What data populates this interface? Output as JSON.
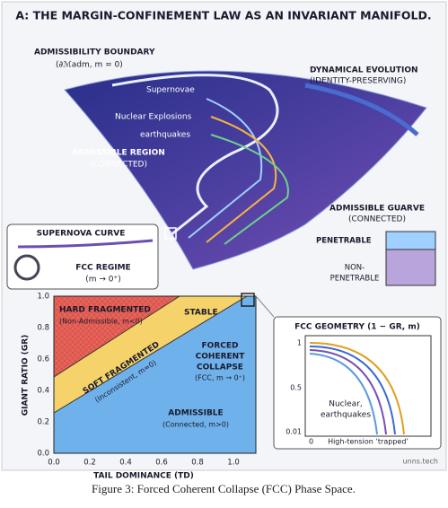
{
  "title": "A: THE MARGIN-CONFINEMENT LAW AS AN INVARIANT MANIFOLD.",
  "manifold": {
    "boundary": "ADMISSIBILITY BOUNDARY",
    "boundary_sub": "(∂ℳadm, m = 0)",
    "evolution": "DYNAMICAL EVOLUTION",
    "evolution_sub": "(IDENTITY-PRESERVING)",
    "events": [
      "Supernovae",
      "Nuclear Explosions",
      "earthquakes"
    ],
    "region": "ADMISSIBLE REGION",
    "region_sub": "(CONNECTED)",
    "guarve": "ADMISSIBLE GUARVE",
    "guarve_sub": "(CONNECTED)",
    "penetrable": "PENETRABLE",
    "non_penetrable": [
      "NON-",
      "PENETRABLE"
    ]
  },
  "zoom": {
    "title": "SUPERNOVA CURVE",
    "regime": "FCC REGIME",
    "regime_sub": "(m → 0⁺)"
  },
  "phase": {
    "ylabel": "GIANT RATIO (GR)",
    "xlabel": "TAIL DOMINANCE (TD)",
    "xticks": [
      "0.0",
      "0.2",
      "0.4",
      "0.6",
      "0.8",
      "1.0"
    ],
    "yticks": [
      "0.0",
      "0.2",
      "0.4",
      "0.6",
      "0.8",
      "1.0"
    ],
    "hard": "HARD FRAGMENTED",
    "hard_sub": "(Non-Admissible, m<0)",
    "stable": "STABLE",
    "soft": "SOFT FRAGMENTED",
    "soft_sub": "(Inconsistent, m≈0)",
    "fcc": [
      "FORCED",
      "COHERENT",
      "COLLAPSE",
      "(FCC, m → 0⁺)"
    ],
    "admissible": "ADMISSIBLE",
    "admissible_sub": "(Connected, m>0)"
  },
  "inset": {
    "title": "FCC GEOMETRY (1 − GR, m)",
    "yticks": [
      "1",
      "0.5",
      "0.01"
    ],
    "x0": "0",
    "xlabel": "High-tension ‘trapped’",
    "note": [
      "Nuclear,",
      "earthquakes"
    ]
  },
  "watermark": "unns.tech",
  "caption": "Figure 3: Forced Coherent Collapse (FCC) Phase Space."
}
